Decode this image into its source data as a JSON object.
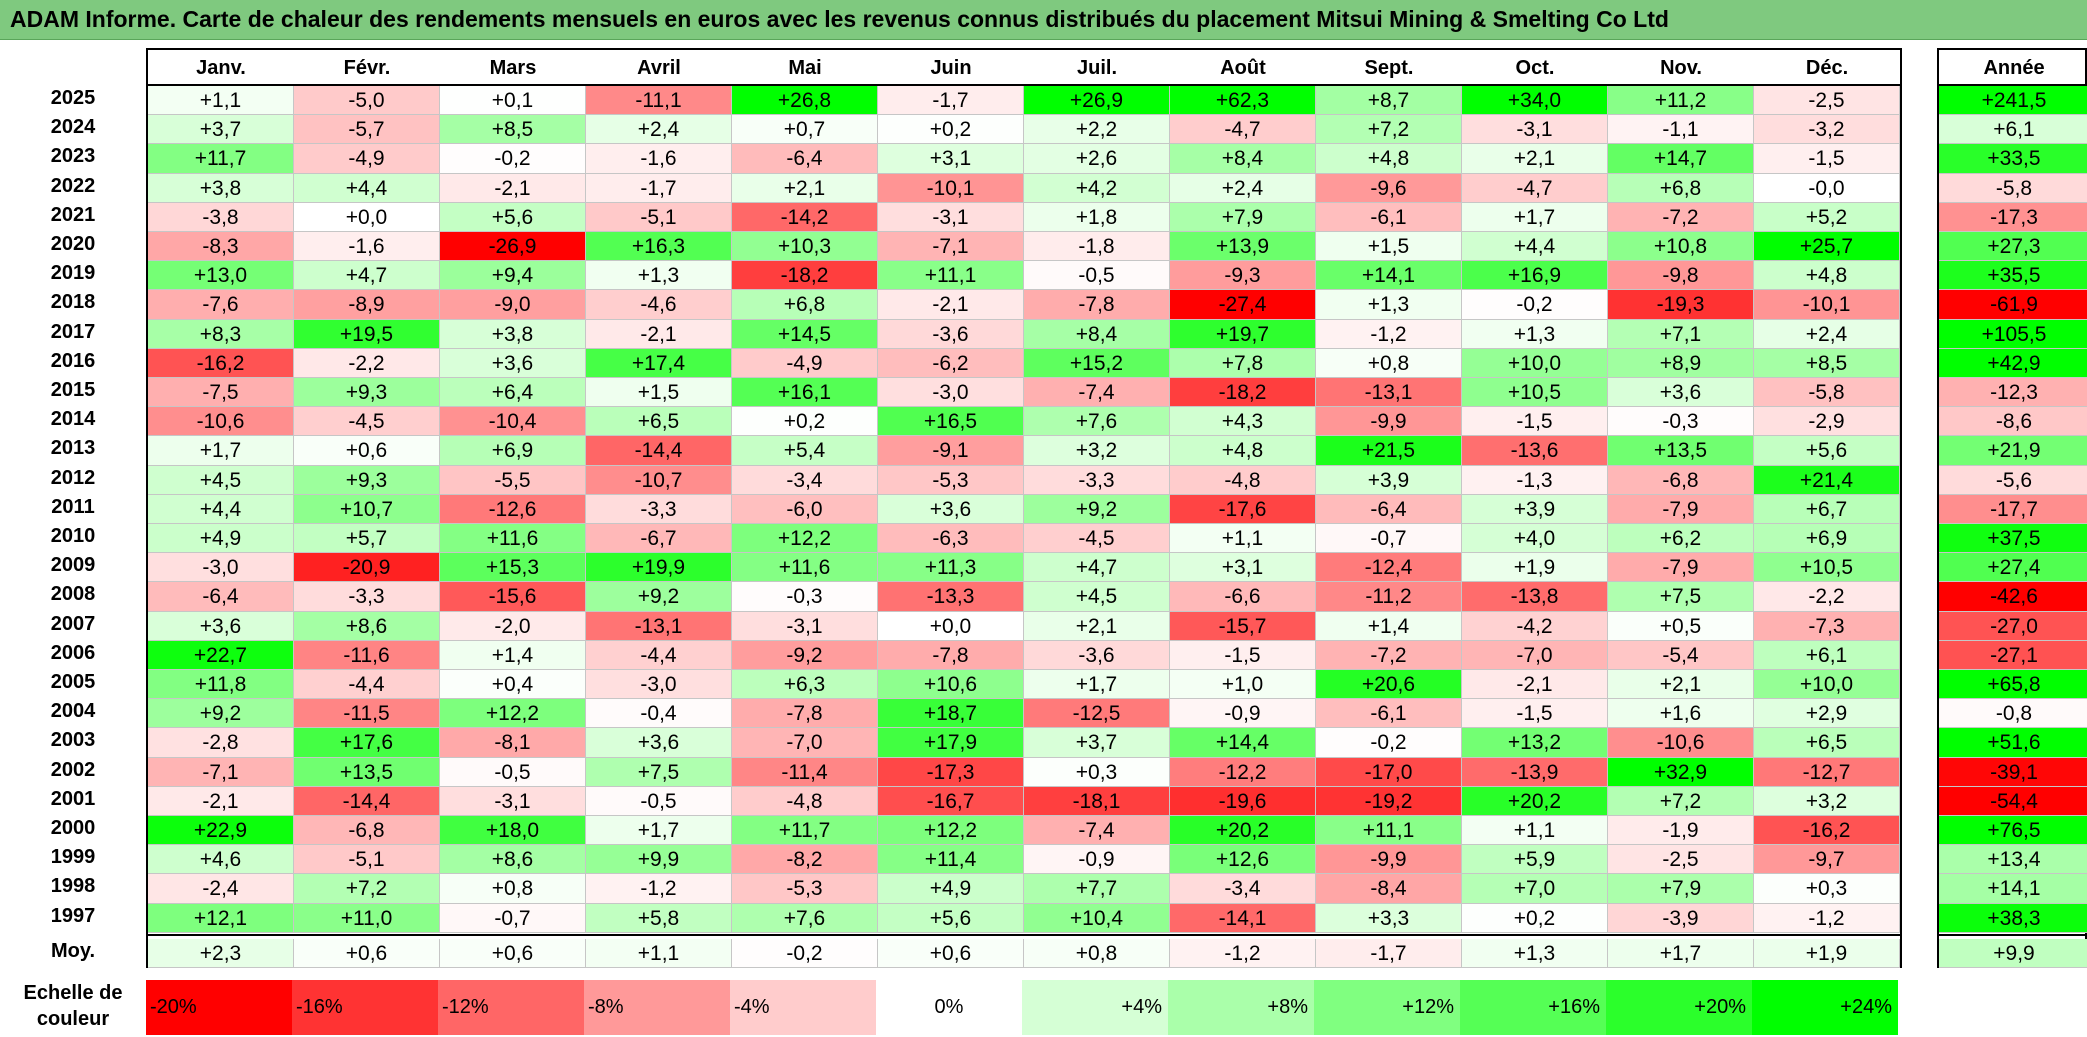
{
  "title": "ADAM Informe. Carte de chaleur des rendements mensuels en euros avec les revenus connus distribués du placement Mitsui Mining & Smelting Co Ltd",
  "colors": {
    "negative": "#ff0000",
    "zero": "#ffffff",
    "positive": "#00ff00",
    "title_bg": "#7fc97f"
  },
  "chart_data": {
    "type": "heatmap",
    "title": "ADAM Informe. Carte de chaleur des rendements mensuels en euros avec les revenus connus distribués du placement Mitsui Mining & Smelting Co Ltd",
    "months": [
      "Janv.",
      "Févr.",
      "Mars",
      "Avril",
      "Mai",
      "Juin",
      "Juil.",
      "Août",
      "Sept.",
      "Oct.",
      "Nov.",
      "Déc."
    ],
    "year_header": "Année",
    "rows": [
      {
        "year": "2025",
        "values": [
          "+1,1",
          "-5,0",
          "+0,1",
          "-11,1",
          "+26,8",
          "-1,7",
          "+26,9",
          "+62,3",
          "+8,7",
          "+34,0",
          "+11,2",
          "-2,5"
        ],
        "annual": "+241,5"
      },
      {
        "year": "2024",
        "values": [
          "+3,7",
          "-5,7",
          "+8,5",
          "+2,4",
          "+0,7",
          "+0,2",
          "+2,2",
          "-4,7",
          "+7,2",
          "-3,1",
          "-1,1",
          "-3,2"
        ],
        "annual": "+6,1"
      },
      {
        "year": "2023",
        "values": [
          "+11,7",
          "-4,9",
          "-0,2",
          "-1,6",
          "-6,4",
          "+3,1",
          "+2,6",
          "+8,4",
          "+4,8",
          "+2,1",
          "+14,7",
          "-1,5"
        ],
        "annual": "+33,5"
      },
      {
        "year": "2022",
        "values": [
          "+3,8",
          "+4,4",
          "-2,1",
          "-1,7",
          "+2,1",
          "-10,1",
          "+4,2",
          "+2,4",
          "-9,6",
          "-4,7",
          "+6,8",
          "-0,0"
        ],
        "annual": "-5,8"
      },
      {
        "year": "2021",
        "values": [
          "-3,8",
          "+0,0",
          "+5,6",
          "-5,1",
          "-14,2",
          "-3,1",
          "+1,8",
          "+7,9",
          "-6,1",
          "+1,7",
          "-7,2",
          "+5,2"
        ],
        "annual": "-17,3"
      },
      {
        "year": "2020",
        "values": [
          "-8,3",
          "-1,6",
          "-26,9",
          "+16,3",
          "+10,3",
          "-7,1",
          "-1,8",
          "+13,9",
          "+1,5",
          "+4,4",
          "+10,8",
          "+25,7"
        ],
        "annual": "+27,3"
      },
      {
        "year": "2019",
        "values": [
          "+13,0",
          "+4,7",
          "+9,4",
          "+1,3",
          "-18,2",
          "+11,1",
          "-0,5",
          "-9,3",
          "+14,1",
          "+16,9",
          "-9,8",
          "+4,8"
        ],
        "annual": "+35,5"
      },
      {
        "year": "2018",
        "values": [
          "-7,6",
          "-8,9",
          "-9,0",
          "-4,6",
          "+6,8",
          "-2,1",
          "-7,8",
          "-27,4",
          "+1,3",
          "-0,2",
          "-19,3",
          "-10,1"
        ],
        "annual": "-61,9"
      },
      {
        "year": "2017",
        "values": [
          "+8,3",
          "+19,5",
          "+3,8",
          "-2,1",
          "+14,5",
          "-3,6",
          "+8,4",
          "+19,7",
          "-1,2",
          "+1,3",
          "+7,1",
          "+2,4"
        ],
        "annual": "+105,5"
      },
      {
        "year": "2016",
        "values": [
          "-16,2",
          "-2,2",
          "+3,6",
          "+17,4",
          "-4,9",
          "-6,2",
          "+15,2",
          "+7,8",
          "+0,8",
          "+10,0",
          "+8,9",
          "+8,5"
        ],
        "annual": "+42,9"
      },
      {
        "year": "2015",
        "values": [
          "-7,5",
          "+9,3",
          "+6,4",
          "+1,5",
          "+16,1",
          "-3,0",
          "-7,4",
          "-18,2",
          "-13,1",
          "+10,5",
          "+3,6",
          "-5,8"
        ],
        "annual": "-12,3"
      },
      {
        "year": "2014",
        "values": [
          "-10,6",
          "-4,5",
          "-10,4",
          "+6,5",
          "+0,2",
          "+16,5",
          "+7,6",
          "+4,3",
          "-9,9",
          "-1,5",
          "-0,3",
          "-2,9"
        ],
        "annual": "-8,6"
      },
      {
        "year": "2013",
        "values": [
          "+1,7",
          "+0,6",
          "+6,9",
          "-14,4",
          "+5,4",
          "-9,1",
          "+3,2",
          "+4,8",
          "+21,5",
          "-13,6",
          "+13,5",
          "+5,6"
        ],
        "annual": "+21,9"
      },
      {
        "year": "2012",
        "values": [
          "+4,5",
          "+9,3",
          "-5,5",
          "-10,7",
          "-3,4",
          "-5,3",
          "-3,3",
          "-4,8",
          "+3,9",
          "-1,3",
          "-6,8",
          "+21,4"
        ],
        "annual": "-5,6"
      },
      {
        "year": "2011",
        "values": [
          "+4,4",
          "+10,7",
          "-12,6",
          "-3,3",
          "-6,0",
          "+3,6",
          "+9,2",
          "-17,6",
          "-6,4",
          "+3,9",
          "-7,9",
          "+6,7"
        ],
        "annual": "-17,7"
      },
      {
        "year": "2010",
        "values": [
          "+4,9",
          "+5,7",
          "+11,6",
          "-6,7",
          "+12,2",
          "-6,3",
          "-4,5",
          "+1,1",
          "-0,7",
          "+4,0",
          "+6,2",
          "+6,9"
        ],
        "annual": "+37,5"
      },
      {
        "year": "2009",
        "values": [
          "-3,0",
          "-20,9",
          "+15,3",
          "+19,9",
          "+11,6",
          "+11,3",
          "+4,7",
          "+3,1",
          "-12,4",
          "+1,9",
          "-7,9",
          "+10,5"
        ],
        "annual": "+27,4"
      },
      {
        "year": "2008",
        "values": [
          "-6,4",
          "-3,3",
          "-15,6",
          "+9,2",
          "-0,3",
          "-13,3",
          "+4,5",
          "-6,6",
          "-11,2",
          "-13,8",
          "+7,5",
          "-2,2"
        ],
        "annual": "-42,6"
      },
      {
        "year": "2007",
        "values": [
          "+3,6",
          "+8,6",
          "-2,0",
          "-13,1",
          "-3,1",
          "+0,0",
          "+2,1",
          "-15,7",
          "+1,4",
          "-4,2",
          "+0,5",
          "-7,3"
        ],
        "annual": "-27,0"
      },
      {
        "year": "2006",
        "values": [
          "+22,7",
          "-11,6",
          "+1,4",
          "-4,4",
          "-9,2",
          "-7,8",
          "-3,6",
          "-1,5",
          "-7,2",
          "-7,0",
          "-5,4",
          "+6,1"
        ],
        "annual": "-27,1"
      },
      {
        "year": "2005",
        "values": [
          "+11,8",
          "-4,4",
          "+0,4",
          "-3,0",
          "+6,3",
          "+10,6",
          "+1,7",
          "+1,0",
          "+20,6",
          "-2,1",
          "+2,1",
          "+10,0"
        ],
        "annual": "+65,8"
      },
      {
        "year": "2004",
        "values": [
          "+9,2",
          "-11,5",
          "+12,2",
          "-0,4",
          "-7,8",
          "+18,7",
          "-12,5",
          "-0,9",
          "-6,1",
          "-1,5",
          "+1,6",
          "+2,9"
        ],
        "annual": "-0,8"
      },
      {
        "year": "2003",
        "values": [
          "-2,8",
          "+17,6",
          "-8,1",
          "+3,6",
          "-7,0",
          "+17,9",
          "+3,7",
          "+14,4",
          "-0,2",
          "+13,2",
          "-10,6",
          "+6,5"
        ],
        "annual": "+51,6"
      },
      {
        "year": "2002",
        "values": [
          "-7,1",
          "+13,5",
          "-0,5",
          "+7,5",
          "-11,4",
          "-17,3",
          "+0,3",
          "-12,2",
          "-17,0",
          "-13,9",
          "+32,9",
          "-12,7"
        ],
        "annual": "-39,1"
      },
      {
        "year": "2001",
        "values": [
          "-2,1",
          "-14,4",
          "-3,1",
          "-0,5",
          "-4,8",
          "-16,7",
          "-18,1",
          "-19,6",
          "-19,2",
          "+20,2",
          "+7,2",
          "+3,2"
        ],
        "annual": "-54,4"
      },
      {
        "year": "2000",
        "values": [
          "+22,9",
          "-6,8",
          "+18,0",
          "+1,7",
          "+11,7",
          "+12,2",
          "-7,4",
          "+20,2",
          "+11,1",
          "+1,1",
          "-1,9",
          "-16,2"
        ],
        "annual": "+76,5"
      },
      {
        "year": "1999",
        "values": [
          "+4,6",
          "-5,1",
          "+8,6",
          "+9,9",
          "-8,2",
          "+11,4",
          "-0,9",
          "+12,6",
          "-9,9",
          "+5,9",
          "-2,5",
          "-9,7"
        ],
        "annual": "+13,4"
      },
      {
        "year": "1998",
        "values": [
          "-2,4",
          "+7,2",
          "+0,8",
          "-1,2",
          "-5,3",
          "+4,9",
          "+7,7",
          "-3,4",
          "-8,4",
          "+7,0",
          "+7,9",
          "+0,3"
        ],
        "annual": "+14,1"
      },
      {
        "year": "1997",
        "values": [
          "+12,1",
          "+11,0",
          "-0,7",
          "+5,8",
          "+7,6",
          "+5,6",
          "+10,4",
          "-14,1",
          "+3,3",
          "+0,2",
          "-3,9",
          "-1,2"
        ],
        "annual": "+38,3"
      }
    ],
    "average": {
      "label": "Moy.",
      "values": [
        "+2,3",
        "+0,6",
        "+0,6",
        "+1,1",
        "-0,2",
        "+0,6",
        "+0,8",
        "-1,2",
        "-1,7",
        "+1,3",
        "+1,7",
        "+1,9"
      ],
      "annual": "+9,9"
    },
    "scale": {
      "label": "Echelle de couleur",
      "steps": [
        "-20%",
        "-16%",
        "-12%",
        "-8%",
        "-4%",
        "0%",
        "+4%",
        "+8%",
        "+12%",
        "+16%",
        "+20%",
        "+24%"
      ],
      "values": [
        -20,
        -16,
        -12,
        -8,
        -4,
        0,
        4,
        8,
        12,
        16,
        20,
        24
      ]
    }
  }
}
